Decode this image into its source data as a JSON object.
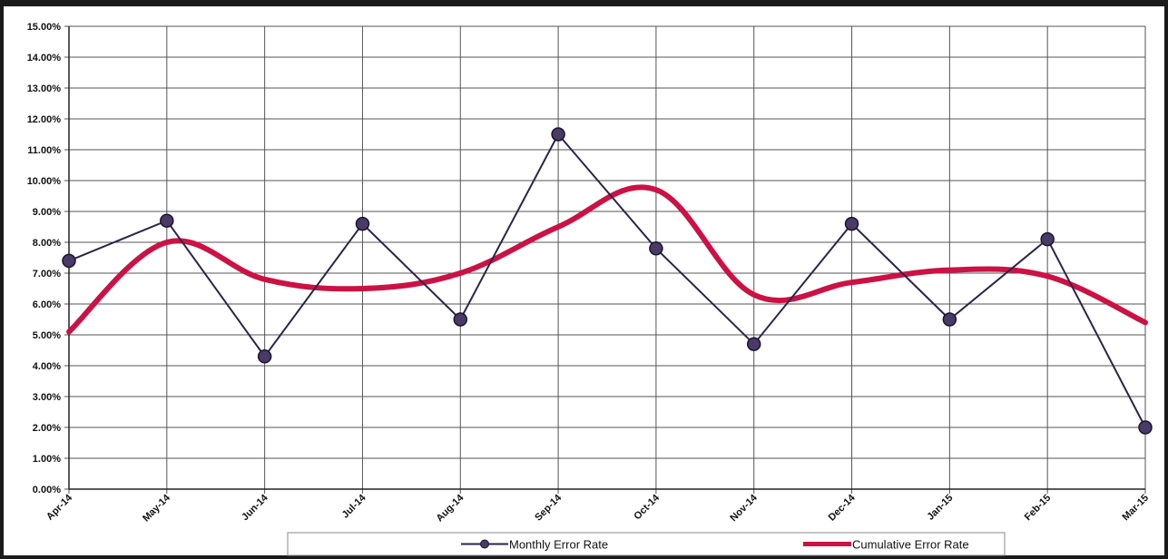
{
  "chart_data": {
    "type": "line",
    "categories": [
      "Apr-14",
      "May-14",
      "Jun-14",
      "Jul-14",
      "Aug-14",
      "Sep-14",
      "Oct-14",
      "Nov-14",
      "Dec-14",
      "Jan-15",
      "Feb-15",
      "Mar-15"
    ],
    "ylim": [
      0,
      0.15
    ],
    "yticks": [
      "0.00%",
      "1.00%",
      "2.00%",
      "3.00%",
      "4.00%",
      "5.00%",
      "6.00%",
      "7.00%",
      "8.00%",
      "9.00%",
      "10.00%",
      "11.00%",
      "12.00%",
      "13.00%",
      "14.00%",
      "15.00%"
    ],
    "grid": true,
    "legend_position": "bottom",
    "series": [
      {
        "name": "Monthly Error Rate",
        "color": "#2b2448",
        "marker_color": "#4a3a66",
        "smooth": false,
        "values": [
          0.074,
          0.087,
          0.043,
          0.086,
          0.055,
          0.115,
          0.078,
          0.047,
          0.086,
          0.055,
          0.081,
          0.02
        ]
      },
      {
        "name": "Cumulative Error Rate",
        "color": "#cc1144",
        "smooth": true,
        "values": [
          0.051,
          0.08,
          0.068,
          0.065,
          0.07,
          0.085,
          0.097,
          0.063,
          0.067,
          0.071,
          0.069,
          0.054
        ]
      }
    ]
  }
}
